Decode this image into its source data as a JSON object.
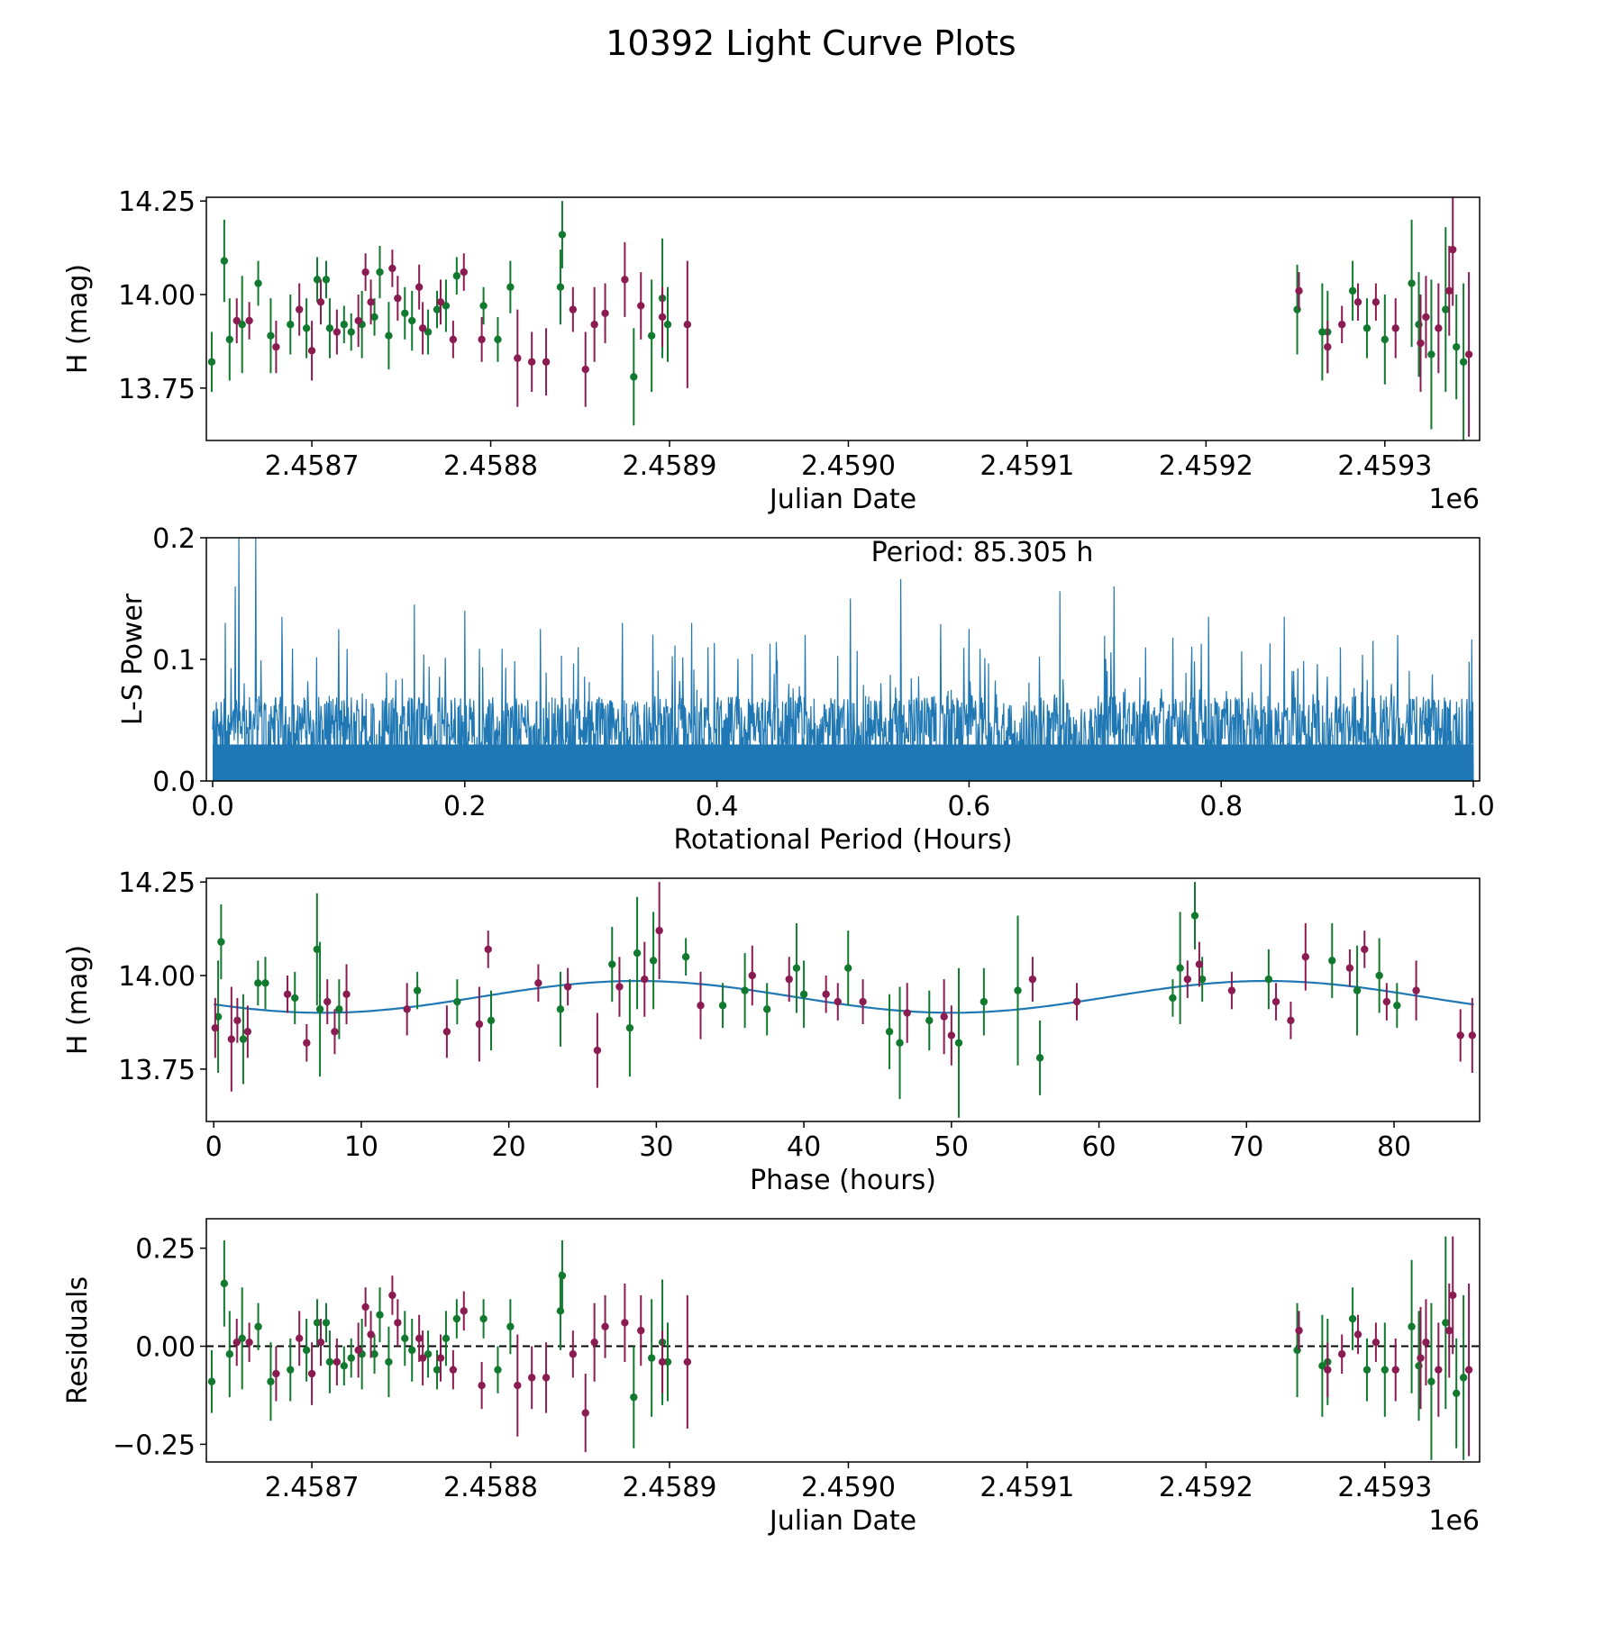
{
  "figure": {
    "title": "10392 Light Curve Plots"
  },
  "colors": {
    "green": "#117a2e",
    "magenta": "#8b1c52",
    "line": "#1f77b4",
    "black": "#000000"
  },
  "chart_data": [
    {
      "id": "raw",
      "type": "scatter",
      "xlabel": "Julian Date",
      "ylabel": "H (mag)",
      "xlim": [
        2458641,
        2459353
      ],
      "ylim": [
        13.61,
        14.26
      ],
      "xticks": [
        2458700,
        2458800,
        2458900,
        2459000,
        2459100,
        2459200,
        2459300
      ],
      "xticklabels": [
        "2.4587",
        "2.4588",
        "2.4589",
        "2.4590",
        "2.4591",
        "2.4592",
        "2.4593"
      ],
      "yticks": [
        13.75,
        14.0,
        14.25
      ],
      "yticklabels": [
        "13.75",
        "14.00",
        "14.25"
      ],
      "offset_label": "1e6",
      "series": [
        {
          "name": "green",
          "color": "#117a2e",
          "x": [
            2458644,
            2458651,
            2458654,
            2458661,
            2458670,
            2458677,
            2458688,
            2458697,
            2458703,
            2458708,
            2458710,
            2458718,
            2458722,
            2458728,
            2458735,
            2458738,
            2458743,
            2458752,
            2458756,
            2458765,
            2458770,
            2458775,
            2458781,
            2458796,
            2458804,
            2458811,
            2458839,
            2458840,
            2458880,
            2458890,
            2458896,
            2458899,
            2459251,
            2459265,
            2459268,
            2459282,
            2459290,
            2459300,
            2459315,
            2459319,
            2459326,
            2459334,
            2459340,
            2459344
          ],
          "y": [
            13.82,
            14.09,
            13.88,
            13.92,
            14.03,
            13.89,
            13.92,
            13.91,
            14.04,
            14.04,
            13.91,
            13.92,
            13.9,
            13.92,
            13.94,
            14.06,
            13.89,
            13.95,
            13.93,
            13.9,
            13.96,
            13.97,
            14.05,
            13.97,
            13.88,
            14.02,
            14.02,
            14.16,
            13.78,
            13.89,
            13.99,
            13.92,
            13.96,
            13.9,
            13.9,
            14.01,
            13.91,
            13.88,
            14.03,
            13.92,
            13.84,
            13.96,
            13.86,
            13.82
          ],
          "err": [
            0.08,
            0.11,
            0.11,
            0.13,
            0.06,
            0.1,
            0.08,
            0.08,
            0.06,
            0.05,
            0.08,
            0.05,
            0.05,
            0.09,
            0.05,
            0.07,
            0.09,
            0.07,
            0.08,
            0.06,
            0.05,
            0.07,
            0.05,
            0.05,
            0.06,
            0.07,
            0.1,
            0.09,
            0.13,
            0.15,
            0.16,
            0.1,
            0.12,
            0.13,
            0.11,
            0.08,
            0.08,
            0.12,
            0.17,
            0.14,
            0.2,
            0.22,
            0.14,
            0.21
          ]
        },
        {
          "name": "magenta",
          "color": "#8b1c52",
          "x": [
            2458658,
            2458665,
            2458680,
            2458693,
            2458700,
            2458705,
            2458714,
            2458726,
            2458730,
            2458733,
            2458745,
            2458748,
            2458760,
            2458762,
            2458772,
            2458779,
            2458785,
            2458795,
            2458815,
            2458823,
            2458831,
            2458846,
            2458853,
            2458858,
            2458864,
            2458875,
            2458884,
            2458896,
            2458910,
            2459252,
            2459268,
            2459276,
            2459285,
            2459295,
            2459306,
            2459320,
            2459323,
            2459330,
            2459336,
            2459338,
            2459347
          ],
          "y": [
            13.93,
            13.93,
            13.86,
            13.96,
            13.85,
            13.98,
            13.9,
            13.93,
            14.06,
            13.98,
            14.07,
            13.99,
            14.02,
            13.91,
            13.98,
            13.88,
            14.06,
            13.88,
            13.83,
            13.82,
            13.82,
            13.96,
            13.8,
            13.92,
            13.95,
            14.04,
            13.97,
            13.94,
            13.92,
            14.01,
            13.86,
            13.92,
            13.98,
            13.98,
            13.91,
            13.87,
            13.94,
            13.91,
            14.01,
            14.12,
            13.84
          ],
          "err": [
            0.06,
            0.05,
            0.07,
            0.07,
            0.08,
            0.06,
            0.06,
            0.07,
            0.05,
            0.06,
            0.05,
            0.06,
            0.06,
            0.07,
            0.06,
            0.05,
            0.05,
            0.06,
            0.13,
            0.08,
            0.09,
            0.06,
            0.1,
            0.1,
            0.08,
            0.1,
            0.09,
            0.08,
            0.17,
            0.05,
            0.07,
            0.05,
            0.05,
            0.05,
            0.08,
            0.13,
            0.11,
            0.12,
            0.12,
            0.15,
            0.22
          ]
        }
      ]
    },
    {
      "id": "periodogram",
      "type": "line",
      "xlabel": "Rotational Period (Hours)",
      "ylabel": "L-S Power",
      "xlim": [
        -0.005,
        1.005
      ],
      "ylim": [
        0,
        0.2
      ],
      "xticks": [
        0.0,
        0.2,
        0.4,
        0.6,
        0.8,
        1.0
      ],
      "xticklabels": [
        "0.0",
        "0.2",
        "0.4",
        "0.6",
        "0.8",
        "1.0"
      ],
      "yticks": [
        0.0,
        0.1,
        0.2
      ],
      "yticklabels": [
        "0.0",
        "0.1",
        "0.2"
      ],
      "annotation": "Period: 85.305 h",
      "line_color": "#1f77b4",
      "x_range": [
        0.0,
        1.0
      ],
      "peaks": [
        {
          "x": 0.01,
          "y": 0.13
        },
        {
          "x": 0.018,
          "y": 0.16
        },
        {
          "x": 0.021,
          "y": 0.2
        },
        {
          "x": 0.034,
          "y": 0.2
        },
        {
          "x": 0.055,
          "y": 0.135
        },
        {
          "x": 0.1,
          "y": 0.125
        },
        {
          "x": 0.16,
          "y": 0.145
        },
        {
          "x": 0.2,
          "y": 0.14
        },
        {
          "x": 0.26,
          "y": 0.125
        },
        {
          "x": 0.29,
          "y": 0.11
        },
        {
          "x": 0.325,
          "y": 0.13
        },
        {
          "x": 0.38,
          "y": 0.13
        },
        {
          "x": 0.47,
          "y": 0.12
        },
        {
          "x": 0.506,
          "y": 0.15
        },
        {
          "x": 0.546,
          "y": 0.166
        },
        {
          "x": 0.6,
          "y": 0.125
        },
        {
          "x": 0.672,
          "y": 0.156
        },
        {
          "x": 0.715,
          "y": 0.16
        },
        {
          "x": 0.79,
          "y": 0.135
        },
        {
          "x": 0.85,
          "y": 0.135
        },
        {
          "x": 0.94,
          "y": 0.12
        }
      ]
    },
    {
      "id": "phased",
      "type": "scatter",
      "xlabel": "Phase (hours)",
      "ylabel": "H (mag)",
      "xlim": [
        -0.5,
        85.8
      ],
      "ylim": [
        13.61,
        14.26
      ],
      "xticks": [
        0,
        10,
        20,
        30,
        40,
        50,
        60,
        70,
        80
      ],
      "xticklabels": [
        "0",
        "10",
        "20",
        "30",
        "40",
        "50",
        "60",
        "70",
        "80"
      ],
      "yticks": [
        13.75,
        14.0,
        14.25
      ],
      "yticklabels": [
        "13.75",
        "14.00",
        "14.25"
      ],
      "fit": {
        "mean": 13.943,
        "amplitude": 0.0425,
        "period": 42.65,
        "phase_peak": 28.7,
        "color": "#1f77b4"
      },
      "series": [
        {
          "name": "green",
          "color": "#117a2e",
          "x": [
            0.3,
            0.5,
            2.0,
            3.0,
            3.5,
            5.5,
            7.0,
            7.2,
            8.5,
            13.8,
            16.5,
            18.8,
            23.5,
            27.0,
            28.2,
            28.7,
            29.8,
            32.0,
            34.5,
            36.0,
            37.5,
            39.5,
            40.0,
            43.0,
            45.8,
            46.5,
            48.5,
            50.5,
            52.2,
            54.5,
            56.0,
            65.0,
            65.5,
            66.5,
            67.0,
            71.5,
            75.8,
            77.5,
            79.0,
            80.2
          ],
          "y": [
            13.89,
            14.09,
            13.83,
            13.98,
            13.98,
            13.94,
            14.07,
            13.91,
            13.91,
            13.96,
            13.93,
            13.88,
            13.91,
            14.03,
            13.86,
            14.06,
            14.04,
            14.05,
            13.92,
            13.96,
            13.91,
            14.02,
            13.95,
            14.02,
            13.85,
            13.82,
            13.88,
            13.82,
            13.93,
            13.96,
            13.78,
            13.94,
            14.02,
            14.16,
            13.99,
            13.99,
            14.04,
            13.96,
            14.0,
            13.92
          ],
          "err": [
            0.15,
            0.1,
            0.12,
            0.06,
            0.07,
            0.07,
            0.15,
            0.18,
            0.08,
            0.05,
            0.06,
            0.08,
            0.1,
            0.1,
            0.13,
            0.15,
            0.13,
            0.05,
            0.06,
            0.1,
            0.07,
            0.12,
            0.09,
            0.1,
            0.1,
            0.15,
            0.08,
            0.2,
            0.09,
            0.2,
            0.1,
            0.05,
            0.15,
            0.09,
            0.06,
            0.08,
            0.1,
            0.12,
            0.1,
            0.06
          ]
        },
        {
          "name": "magenta",
          "color": "#8b1c52",
          "x": [
            0.1,
            1.2,
            1.6,
            2.3,
            5.0,
            6.3,
            7.7,
            8.2,
            9.0,
            13.1,
            15.8,
            18.0,
            18.6,
            22.0,
            24.0,
            26.0,
            27.5,
            29.2,
            30.2,
            33.0,
            36.5,
            39.0,
            41.5,
            42.3,
            44.0,
            47.0,
            49.5,
            50.0,
            55.5,
            58.5,
            66.0,
            66.8,
            69.0,
            72.0,
            73.0,
            74.0,
            77.0,
            78.0,
            79.5,
            81.5,
            84.5,
            85.3
          ],
          "y": [
            13.86,
            13.83,
            13.88,
            13.85,
            13.95,
            13.82,
            13.93,
            13.85,
            13.95,
            13.91,
            13.85,
            13.87,
            14.07,
            13.98,
            13.97,
            13.8,
            13.97,
            13.99,
            14.12,
            13.92,
            14.0,
            13.99,
            13.95,
            13.93,
            13.93,
            13.9,
            13.89,
            13.84,
            13.99,
            13.93,
            13.99,
            14.03,
            13.96,
            13.93,
            13.88,
            14.05,
            14.02,
            14.07,
            13.93,
            13.96,
            13.84,
            13.84
          ],
          "err": [
            0.08,
            0.14,
            0.06,
            0.07,
            0.05,
            0.05,
            0.06,
            0.06,
            0.08,
            0.07,
            0.07,
            0.1,
            0.05,
            0.05,
            0.05,
            0.1,
            0.08,
            0.1,
            0.13,
            0.09,
            0.08,
            0.06,
            0.05,
            0.05,
            0.06,
            0.08,
            0.1,
            0.08,
            0.06,
            0.05,
            0.05,
            0.06,
            0.05,
            0.05,
            0.05,
            0.09,
            0.05,
            0.05,
            0.05,
            0.08,
            0.07,
            0.1
          ]
        }
      ]
    },
    {
      "id": "residuals",
      "type": "scatter",
      "xlabel": "Julian Date",
      "ylabel": "Residuals",
      "xlim": [
        2458641,
        2459353
      ],
      "ylim": [
        -0.295,
        0.325
      ],
      "xticks": [
        2458700,
        2458800,
        2458900,
        2459000,
        2459100,
        2459200,
        2459300
      ],
      "xticklabels": [
        "2.4587",
        "2.4588",
        "2.4589",
        "2.4590",
        "2.4591",
        "2.4592",
        "2.4593"
      ],
      "yticks": [
        -0.25,
        0.0,
        0.25
      ],
      "yticklabels": [
        "−0.25",
        "0.00",
        "0.25"
      ],
      "offset_label": "1e6",
      "zero_line": 0.0,
      "series": [
        {
          "name": "green",
          "color": "#117a2e",
          "x": [
            2458644,
            2458651,
            2458654,
            2458661,
            2458670,
            2458677,
            2458688,
            2458697,
            2458703,
            2458708,
            2458710,
            2458718,
            2458722,
            2458728,
            2458735,
            2458738,
            2458743,
            2458752,
            2458756,
            2458765,
            2458770,
            2458775,
            2458781,
            2458796,
            2458804,
            2458811,
            2458839,
            2458840,
            2458880,
            2458890,
            2458896,
            2458899,
            2459251,
            2459265,
            2459268,
            2459282,
            2459290,
            2459300,
            2459315,
            2459319,
            2459326,
            2459334,
            2459340,
            2459344
          ],
          "y": [
            -0.09,
            0.16,
            -0.02,
            0.02,
            0.05,
            -0.09,
            -0.06,
            -0.01,
            0.06,
            0.06,
            -0.04,
            -0.05,
            -0.03,
            -0.02,
            -0.02,
            0.08,
            -0.04,
            0.02,
            -0.01,
            -0.02,
            -0.06,
            0.02,
            0.07,
            0.07,
            -0.06,
            0.05,
            0.09,
            0.18,
            -0.13,
            -0.03,
            0.01,
            -0.04,
            -0.01,
            -0.05,
            -0.04,
            0.07,
            -0.06,
            -0.06,
            0.05,
            -0.05,
            -0.09,
            0.06,
            -0.12,
            -0.08
          ],
          "err": [
            0.08,
            0.11,
            0.11,
            0.13,
            0.06,
            0.1,
            0.08,
            0.08,
            0.06,
            0.05,
            0.08,
            0.05,
            0.05,
            0.09,
            0.05,
            0.07,
            0.09,
            0.07,
            0.08,
            0.06,
            0.05,
            0.07,
            0.05,
            0.05,
            0.06,
            0.07,
            0.1,
            0.09,
            0.13,
            0.15,
            0.16,
            0.1,
            0.12,
            0.13,
            0.11,
            0.08,
            0.08,
            0.12,
            0.17,
            0.14,
            0.2,
            0.22,
            0.14,
            0.21
          ]
        },
        {
          "name": "magenta",
          "color": "#8b1c52",
          "x": [
            2458658,
            2458665,
            2458680,
            2458693,
            2458700,
            2458705,
            2458714,
            2458726,
            2458730,
            2458733,
            2458745,
            2458748,
            2458760,
            2458762,
            2458772,
            2458779,
            2458785,
            2458795,
            2458815,
            2458823,
            2458831,
            2458846,
            2458853,
            2458858,
            2458864,
            2458875,
            2458884,
            2458896,
            2458910,
            2459252,
            2459268,
            2459276,
            2459285,
            2459295,
            2459306,
            2459320,
            2459323,
            2459330,
            2459336,
            2459338,
            2459347
          ],
          "y": [
            0.01,
            0.01,
            -0.07,
            0.02,
            -0.07,
            0.01,
            -0.04,
            -0.01,
            0.1,
            0.03,
            0.13,
            0.06,
            0.02,
            -0.03,
            -0.03,
            -0.06,
            0.09,
            -0.1,
            -0.1,
            -0.08,
            -0.08,
            -0.02,
            -0.17,
            0.01,
            0.05,
            0.06,
            0.04,
            -0.04,
            -0.04,
            0.04,
            -0.06,
            -0.02,
            0.03,
            0.01,
            -0.06,
            -0.03,
            0.01,
            -0.06,
            0.04,
            0.13,
            -0.06
          ],
          "err": [
            0.06,
            0.05,
            0.07,
            0.07,
            0.08,
            0.06,
            0.06,
            0.07,
            0.05,
            0.06,
            0.05,
            0.06,
            0.06,
            0.07,
            0.06,
            0.05,
            0.05,
            0.06,
            0.13,
            0.08,
            0.09,
            0.06,
            0.1,
            0.1,
            0.08,
            0.1,
            0.09,
            0.08,
            0.17,
            0.05,
            0.07,
            0.05,
            0.05,
            0.05,
            0.08,
            0.13,
            0.11,
            0.12,
            0.12,
            0.15,
            0.22
          ]
        }
      ]
    }
  ]
}
